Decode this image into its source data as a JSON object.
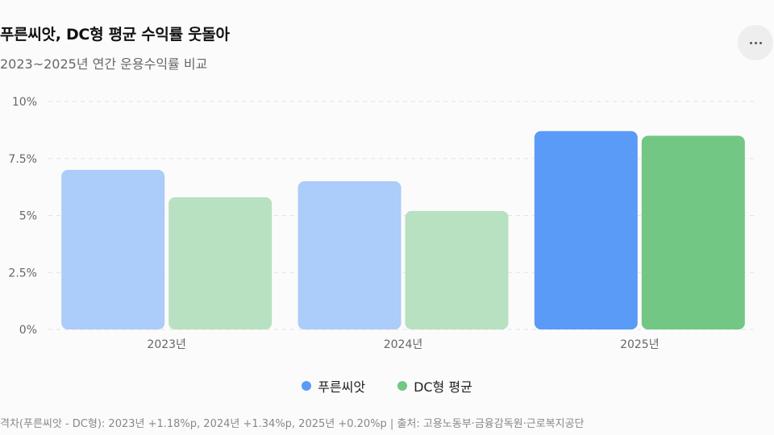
{
  "header": {
    "title": "푸른씨앗, DC형 평균 수익률 웃돌아",
    "subtitle": "2023~2025년 연간 운용수익률 비교",
    "more_icon": "more-horizontal-icon"
  },
  "colors": {
    "series_0": "#5a9bf7",
    "series_0_light": "#acccf9",
    "series_1": "#72c784",
    "series_1_light": "#b7e1c0",
    "grid": "#e2e2e2",
    "tick": "#666666"
  },
  "chart_data": {
    "type": "bar",
    "categories": [
      "2023년",
      "2024년",
      "2025년"
    ],
    "series": [
      {
        "name": "푸른씨앗",
        "values": [
          7.0,
          6.5,
          8.7
        ]
      },
      {
        "name": "DC형 평균",
        "values": [
          5.8,
          5.2,
          8.5
        ]
      }
    ],
    "highlight_category": "2025년",
    "ylim": [
      0,
      10
    ],
    "yticks": [
      {
        "value": 0,
        "label": "0%"
      },
      {
        "value": 2.5,
        "label": "2.5%"
      },
      {
        "value": 5,
        "label": "5%"
      },
      {
        "value": 7.5,
        "label": "7.5%"
      },
      {
        "value": 10,
        "label": "10%"
      }
    ],
    "grid": true,
    "legend_position": "bottom-center"
  },
  "footer": {
    "note": "격차(푸른씨앗 - DC형): 2023년 +1.18%p, 2024년 +1.34%p, 2025년 +0.20%p | 출처: 고용노동부·금융감독원·근로복지공단"
  }
}
